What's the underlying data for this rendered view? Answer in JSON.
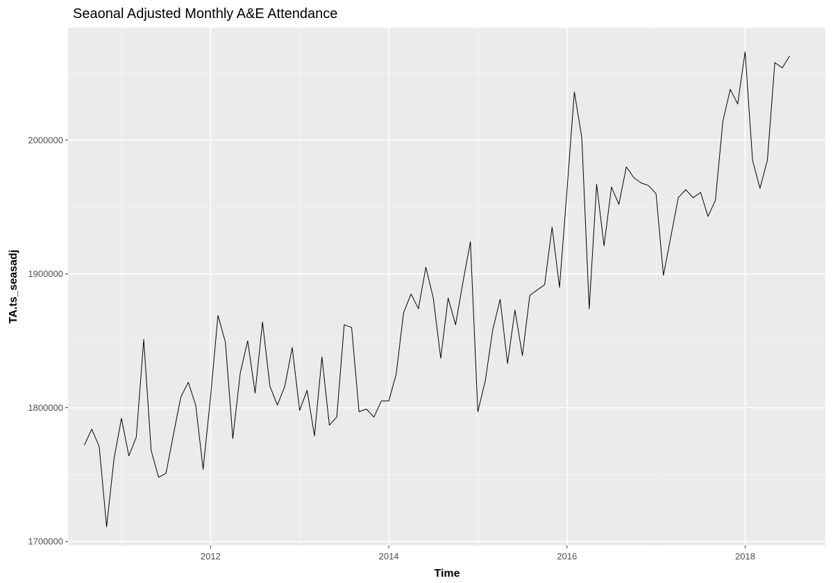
{
  "chart_data": {
    "type": "line",
    "title": "Seaonal Adjusted Monthly A&E Attendance",
    "xlabel": "Time",
    "ylabel": "TA.ts_seasadj",
    "xlim": [
      2010.4,
      2018.9
    ],
    "ylim": [
      1697000,
      2084000
    ],
    "x_ticks": [
      2012,
      2014,
      2016,
      2018
    ],
    "x_tick_labels": [
      "2012",
      "2014",
      "2016",
      "2018"
    ],
    "y_ticks": [
      1700000,
      1800000,
      1900000,
      2000000
    ],
    "y_tick_labels": [
      "1700000",
      "1800000",
      "1900000",
      "2000000"
    ],
    "grid": true,
    "background": "#ebebeb",
    "line_color": "#000000",
    "series": [
      {
        "x_start": 2010.583,
        "x_step": 0.08333,
        "values": [
          1772000,
          1784000,
          1771000,
          1711000,
          1762000,
          1792000,
          1764000,
          1778000,
          1851000,
          1768000,
          1748000,
          1751000,
          1780000,
          1808000,
          1819000,
          1802000,
          1754000,
          1808000,
          1869000,
          1849000,
          1777000,
          1826000,
          1850000,
          1811000,
          1864000,
          1816000,
          1802000,
          1816000,
          1845000,
          1798000,
          1813000,
          1779000,
          1838000,
          1787000,
          1793000,
          1862000,
          1860000,
          1797000,
          1799000,
          1793000,
          1805000,
          1805000,
          1825000,
          1871000,
          1885000,
          1874000,
          1905000,
          1882000,
          1837000,
          1882000,
          1862000,
          1894000,
          1924000,
          1797000,
          1820000,
          1858000,
          1881000,
          1833000,
          1873000,
          1839000,
          1884000,
          1888000,
          1892000,
          1935000,
          1890000,
          1962000,
          2036000,
          2002000,
          1874000,
          1967000,
          1921000,
          1965000,
          1952000,
          1980000,
          1972000,
          1968000,
          1966000,
          1960000,
          1899000,
          1928000,
          1957000,
          1963000,
          1957000,
          1961000,
          1943000,
          1955000,
          2014000,
          2038000,
          2027000,
          2066000,
          1985000,
          1964000,
          1985000,
          2058000,
          2054000,
          2063000
        ]
      }
    ]
  }
}
